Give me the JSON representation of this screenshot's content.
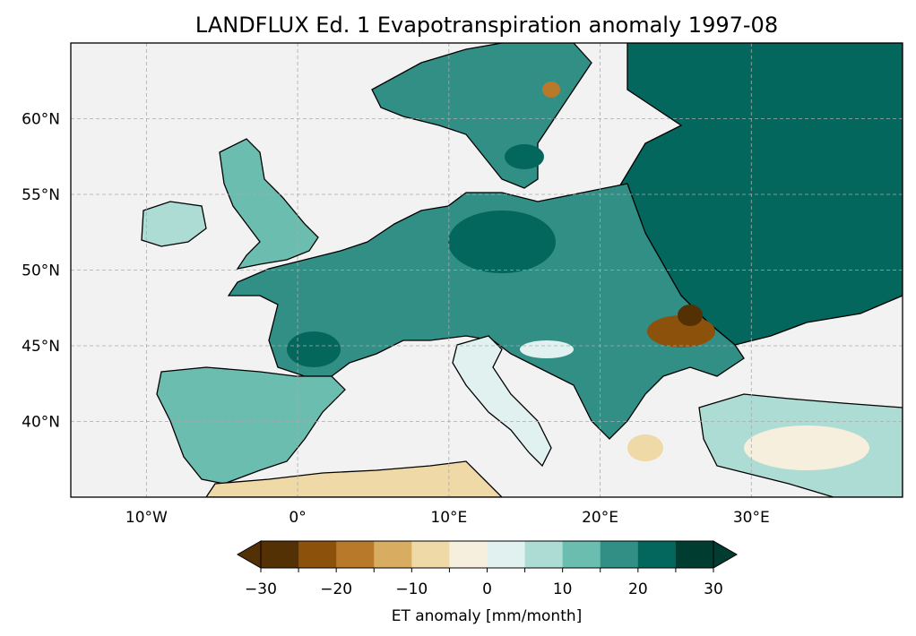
{
  "title": "LANDFLUX Ed. 1 Evapotranspiration anomaly 1997-08",
  "map": {
    "lon_range": [
      -15,
      40
    ],
    "lat_range": [
      35,
      65
    ],
    "lon_ticks": [
      {
        "value": -10,
        "label": "10°W"
      },
      {
        "value": 0,
        "label": "0°"
      },
      {
        "value": 10,
        "label": "10°E"
      },
      {
        "value": 20,
        "label": "20°E"
      },
      {
        "value": 30,
        "label": "30°E"
      }
    ],
    "lat_ticks": [
      {
        "value": 40,
        "label": "40°N"
      },
      {
        "value": 45,
        "label": "45°N"
      },
      {
        "value": 50,
        "label": "50°N"
      },
      {
        "value": 55,
        "label": "55°N"
      },
      {
        "value": 60,
        "label": "60°N"
      }
    ],
    "gridlines": true,
    "ocean_color": "#f2f2f2",
    "border_color": "#000000"
  },
  "colorbar": {
    "label": "ET anomaly [mm/month]",
    "range": [
      -30,
      30
    ],
    "extend": "both",
    "tick_values": [
      -30,
      -20,
      -10,
      0,
      10,
      20,
      30
    ],
    "tick_labels": [
      "−30",
      "−20",
      "−10",
      "0",
      "10",
      "20",
      "30"
    ],
    "bin_edges": [
      -30,
      -25,
      -20,
      -15,
      -10,
      -5,
      0,
      5,
      10,
      15,
      20,
      25,
      30
    ],
    "colors": [
      "#543005",
      "#8c510a",
      "#b8792b",
      "#d8ad62",
      "#efd9a6",
      "#f6efdd",
      "#e1f1ef",
      "#acdcd4",
      "#6bbdb0",
      "#318f85",
      "#03675d",
      "#003c30"
    ],
    "under_color": "#543005",
    "over_color": "#003c30"
  }
}
